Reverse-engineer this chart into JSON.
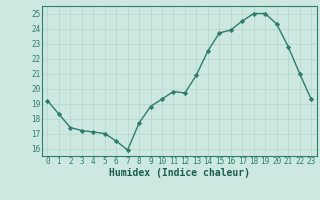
{
  "x": [
    0,
    1,
    2,
    3,
    4,
    5,
    6,
    7,
    8,
    9,
    10,
    11,
    12,
    13,
    14,
    15,
    16,
    17,
    18,
    19,
    20,
    21,
    22,
    23
  ],
  "y": [
    19.2,
    18.3,
    17.4,
    17.2,
    17.1,
    17.0,
    16.5,
    15.9,
    17.7,
    18.8,
    19.3,
    19.8,
    19.7,
    20.9,
    22.5,
    23.7,
    23.9,
    24.5,
    25.0,
    25.0,
    24.3,
    22.8,
    21.0,
    19.3
  ],
  "line_color": "#2e7d6e",
  "marker": "D",
  "marker_size": 2.2,
  "bg_color": "#cce8e0",
  "grid_color": "#b8d8ce",
  "xlabel": "Humidex (Indice chaleur)",
  "ylim": [
    15.5,
    25.5
  ],
  "xlim": [
    -0.5,
    23.5
  ],
  "yticks": [
    16,
    17,
    18,
    19,
    20,
    21,
    22,
    23,
    24,
    25
  ],
  "xticks": [
    0,
    1,
    2,
    3,
    4,
    5,
    6,
    7,
    8,
    9,
    10,
    11,
    12,
    13,
    14,
    15,
    16,
    17,
    18,
    19,
    20,
    21,
    22,
    23
  ],
  "tick_color": "#2e7d6e",
  "label_color": "#1a5c50",
  "spine_color": "#2e7d6e",
  "tick_fontsize": 5.5,
  "xlabel_fontsize": 7.0,
  "linewidth": 1.0
}
